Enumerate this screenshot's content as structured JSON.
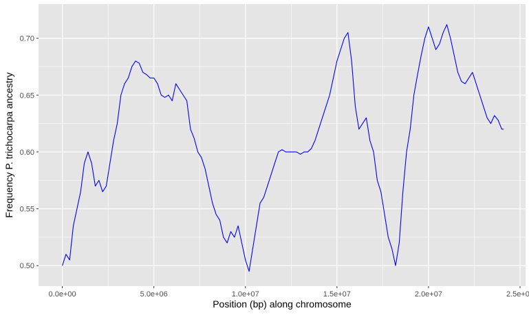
{
  "chart_data": {
    "type": "line",
    "title": "",
    "xlabel": "Position (bp) along chromosome",
    "ylabel": "Frequency P. trichocarpa ancestry",
    "xlim": [
      -1300000,
      25300000
    ],
    "ylim": [
      0.482,
      0.73
    ],
    "x_ticks": [
      0,
      5000000,
      10000000,
      15000000,
      20000000,
      25000000
    ],
    "x_tick_labels": [
      "0.0e+00",
      "5.0e+06",
      "1.0e+07",
      "1.5e+07",
      "2.0e+07",
      "2.5e+07"
    ],
    "y_ticks": [
      0.5,
      0.55,
      0.6,
      0.65,
      0.7
    ],
    "y_tick_labels": [
      "0.50",
      "0.55",
      "0.60",
      "0.65",
      "0.70"
    ],
    "grid": true,
    "background": "#e5e5e5",
    "grid_color": "#ffffff",
    "series": [
      {
        "color": "#0000ff",
        "x": [
          0,
          200000,
          400000,
          600000,
          800000,
          1000000,
          1200000,
          1400000,
          1600000,
          1800000,
          2000000,
          2200000,
          2400000,
          2600000,
          2800000,
          3000000,
          3200000,
          3400000,
          3600000,
          3800000,
          4000000,
          4200000,
          4400000,
          4600000,
          4800000,
          5000000,
          5200000,
          5400000,
          5600000,
          5800000,
          6000000,
          6200000,
          6400000,
          6600000,
          6800000,
          7000000,
          7200000,
          7400000,
          7600000,
          7800000,
          8000000,
          8200000,
          8400000,
          8600000,
          8800000,
          9000000,
          9200000,
          9400000,
          9600000,
          9800000,
          10000000,
          10200000,
          10400000,
          10600000,
          10800000,
          11000000,
          11200000,
          11400000,
          11600000,
          11800000,
          12000000,
          12200000,
          12400000,
          12600000,
          12800000,
          13000000,
          13200000,
          13400000,
          13600000,
          13800000,
          14000000,
          14200000,
          14400000,
          14600000,
          14800000,
          15000000,
          15200000,
          15400000,
          15600000,
          15800000,
          16000000,
          16200000,
          16400000,
          16600000,
          16800000,
          17000000,
          17200000,
          17400000,
          17600000,
          17800000,
          18000000,
          18200000,
          18400000,
          18600000,
          18800000,
          19000000,
          19200000,
          19400000,
          19600000,
          19800000,
          20000000,
          20200000,
          20400000,
          20600000,
          20800000,
          21000000,
          21200000,
          21400000,
          21600000,
          21800000,
          22000000,
          22200000,
          22400000,
          22600000,
          22800000,
          23000000,
          23200000,
          23400000,
          23600000,
          23800000,
          24000000,
          24100000
        ],
        "y": [
          0.5,
          0.51,
          0.505,
          0.535,
          0.55,
          0.565,
          0.59,
          0.6,
          0.59,
          0.57,
          0.575,
          0.565,
          0.57,
          0.59,
          0.61,
          0.625,
          0.65,
          0.66,
          0.665,
          0.675,
          0.68,
          0.678,
          0.67,
          0.668,
          0.665,
          0.665,
          0.66,
          0.65,
          0.648,
          0.65,
          0.645,
          0.66,
          0.655,
          0.65,
          0.645,
          0.62,
          0.612,
          0.6,
          0.595,
          0.585,
          0.57,
          0.555,
          0.545,
          0.54,
          0.525,
          0.52,
          0.53,
          0.525,
          0.535,
          0.52,
          0.505,
          0.495,
          0.515,
          0.535,
          0.555,
          0.56,
          0.57,
          0.58,
          0.59,
          0.6,
          0.602,
          0.6,
          0.6,
          0.6,
          0.6,
          0.598,
          0.6,
          0.6,
          0.603,
          0.61,
          0.62,
          0.63,
          0.64,
          0.65,
          0.665,
          0.68,
          0.69,
          0.7,
          0.705,
          0.68,
          0.64,
          0.62,
          0.625,
          0.63,
          0.61,
          0.6,
          0.575,
          0.565,
          0.545,
          0.525,
          0.515,
          0.5,
          0.52,
          0.565,
          0.6,
          0.62,
          0.65,
          0.668,
          0.685,
          0.7,
          0.71,
          0.7,
          0.69,
          0.695,
          0.705,
          0.712,
          0.7,
          0.685,
          0.67,
          0.662,
          0.66,
          0.665,
          0.67,
          0.66,
          0.65,
          0.64,
          0.63,
          0.625,
          0.632,
          0.628,
          0.62,
          0.62
        ]
      }
    ]
  }
}
